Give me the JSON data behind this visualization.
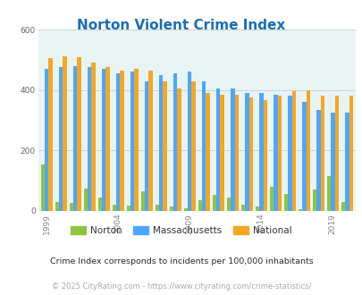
{
  "title": "Norton Violent Crime Index",
  "title_color": "#1a6eb5",
  "years": [
    1999,
    2000,
    2001,
    2002,
    2003,
    2004,
    2005,
    2006,
    2007,
    2008,
    2009,
    2010,
    2011,
    2012,
    2013,
    2014,
    2015,
    2016,
    2017,
    2018,
    2019,
    2020
  ],
  "norton": [
    155,
    30,
    27,
    75,
    45,
    20,
    18,
    65,
    20,
    15,
    10,
    35,
    52,
    45,
    20,
    15,
    80,
    55,
    5,
    70,
    115,
    30
  ],
  "massachusetts": [
    470,
    475,
    480,
    475,
    470,
    455,
    460,
    430,
    450,
    455,
    460,
    430,
    405,
    405,
    390,
    390,
    385,
    380,
    360,
    335,
    325,
    325
  ],
  "national": [
    505,
    510,
    508,
    490,
    475,
    465,
    470,
    465,
    430,
    405,
    430,
    390,
    385,
    385,
    375,
    365,
    380,
    395,
    400,
    380,
    380,
    380
  ],
  "norton_color": "#8dc63f",
  "mass_color": "#4da6ff",
  "national_color": "#f5a623",
  "bg_color": "#e8f4f4",
  "ylim": [
    0,
    600
  ],
  "yticks": [
    0,
    200,
    400,
    600
  ],
  "xlabel_ticks": [
    1999,
    2004,
    2009,
    2014,
    2019
  ],
  "bar_width": 0.28,
  "subtitle": "Crime Index corresponds to incidents per 100,000 inhabitants",
  "footer": "© 2025 CityRating.com - https://www.cityrating.com/crime-statistics/",
  "subtitle_color": "#2a2a2a",
  "footer_color": "#aaaaaa"
}
